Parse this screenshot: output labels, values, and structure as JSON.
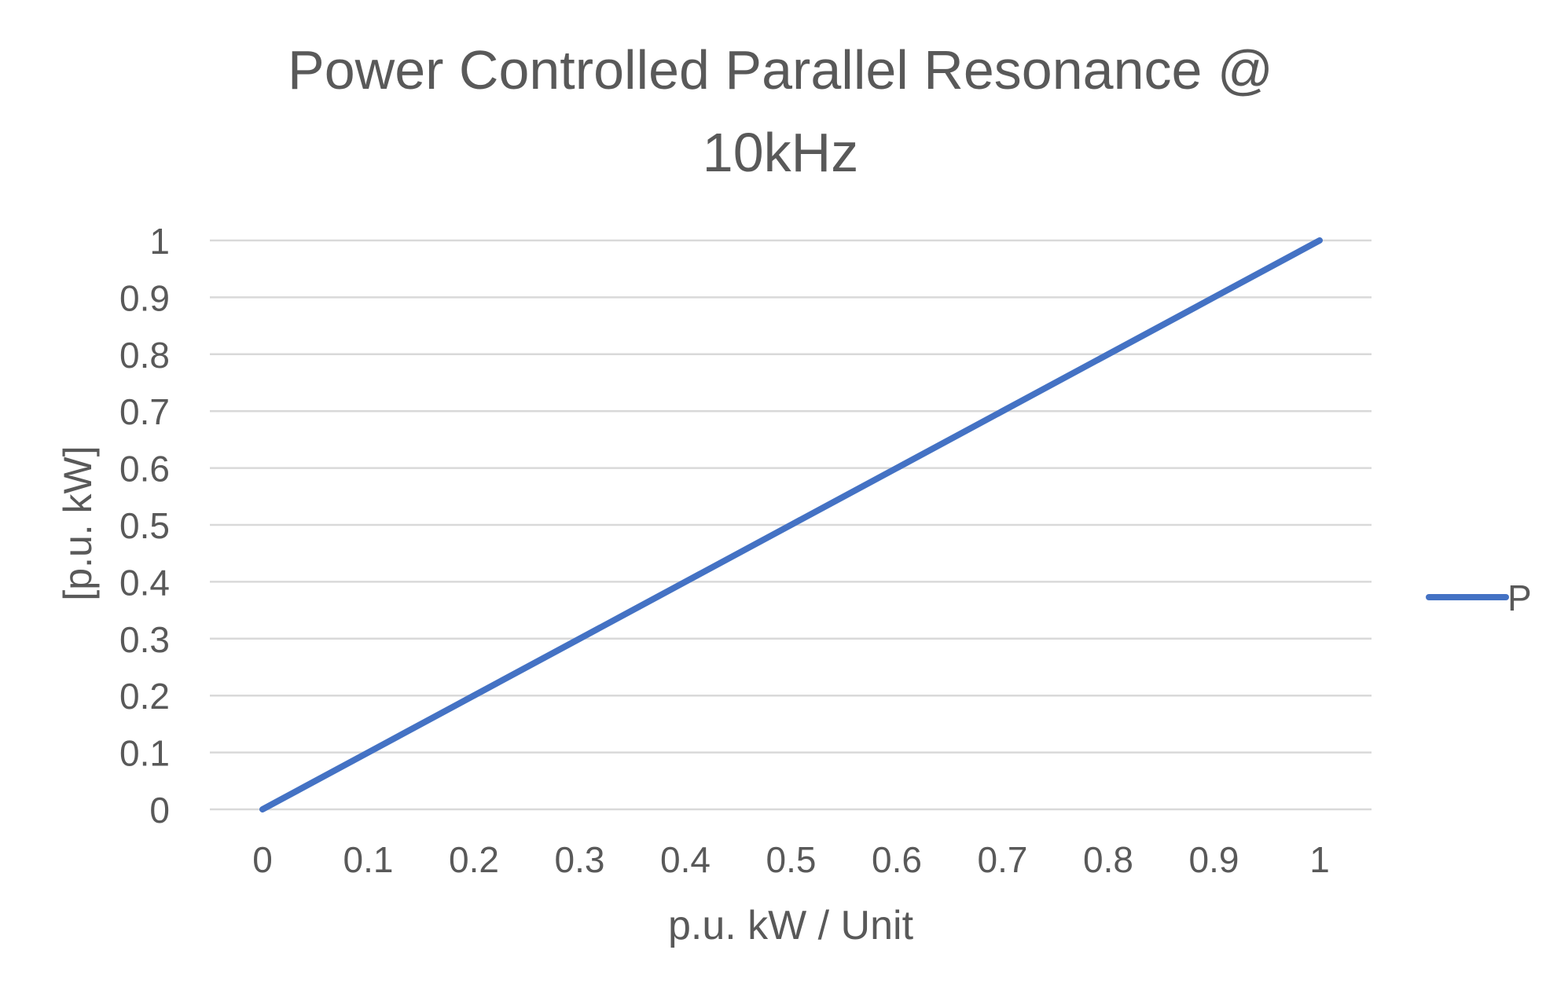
{
  "chart_data": {
    "type": "line",
    "title_lines": [
      "Power Controlled Parallel Resonance @",
      "10kHz"
    ],
    "xlabel": "p.u. kW / Unit",
    "ylabel": "[p.u. kW]",
    "x_ticks": [
      "0",
      "0.1",
      "0.2",
      "0.3",
      "0.4",
      "0.5",
      "0.6",
      "0.7",
      "0.8",
      "0.9",
      "1"
    ],
    "y_ticks": [
      "0",
      "0.1",
      "0.2",
      "0.3",
      "0.4",
      "0.5",
      "0.6",
      "0.7",
      "0.8",
      "0.9",
      "1"
    ],
    "xlim": [
      0,
      1
    ],
    "ylim": [
      0,
      1
    ],
    "grid": "horizontal",
    "legend_position": "right",
    "series": [
      {
        "name": "P",
        "color": "#4472C4",
        "x": [
          0,
          0.1,
          0.2,
          0.3,
          0.4,
          0.5,
          0.6,
          0.7,
          0.8,
          0.9,
          1
        ],
        "y": [
          0,
          0.1,
          0.2,
          0.3,
          0.4,
          0.5,
          0.6,
          0.7,
          0.8,
          0.9,
          1
        ]
      }
    ],
    "colors": {
      "text": "#595959",
      "grid": "#D9D9D9"
    }
  }
}
